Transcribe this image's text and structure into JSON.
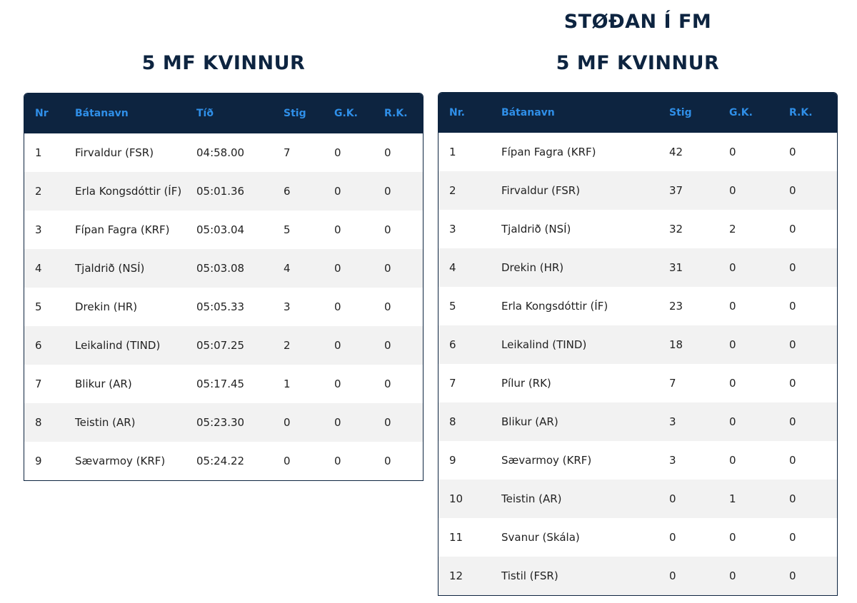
{
  "left": {
    "title": "5 MF KVINNUR",
    "columns": [
      "Nr",
      "Bátanavn",
      "Tíð",
      "Stig",
      "G.K.",
      "R.K."
    ],
    "rows": [
      [
        "1",
        "Firvaldur (FSR)",
        "04:58.00",
        "7",
        "0",
        "0"
      ],
      [
        "2",
        "Erla Kongsdóttir (ÍF)",
        "05:01.36",
        "6",
        "0",
        "0"
      ],
      [
        "3",
        "Fípan Fagra (KRF)",
        "05:03.04",
        "5",
        "0",
        "0"
      ],
      [
        "4",
        "Tjaldrið (NSÍ)",
        "05:03.08",
        "4",
        "0",
        "0"
      ],
      [
        "5",
        "Drekin (HR)",
        "05:05.33",
        "3",
        "0",
        "0"
      ],
      [
        "6",
        "Leikalind (TIND)",
        "05:07.25",
        "2",
        "0",
        "0"
      ],
      [
        "7",
        "Blikur (AR)",
        "05:17.45",
        "1",
        "0",
        "0"
      ],
      [
        "8",
        "Teistin (AR)",
        "05:23.30",
        "0",
        "0",
        "0"
      ],
      [
        "9",
        "Sævarmoy (KRF)",
        "05:24.22",
        "0",
        "0",
        "0"
      ]
    ]
  },
  "right": {
    "title_top": "STØÐAN Í FM",
    "title": "5 MF KVINNUR",
    "columns": [
      "Nr.",
      "Bátanavn",
      "Stig",
      "G.K.",
      "R.K."
    ],
    "rows": [
      [
        "1",
        "Fípan Fagra (KRF)",
        "42",
        "0",
        "0"
      ],
      [
        "2",
        "Firvaldur (FSR)",
        "37",
        "0",
        "0"
      ],
      [
        "3",
        "Tjaldrið (NSÍ)",
        "32",
        "2",
        "0"
      ],
      [
        "4",
        "Drekin (HR)",
        "31",
        "0",
        "0"
      ],
      [
        "5",
        "Erla Kongsdóttir (ÍF)",
        "23",
        "0",
        "0"
      ],
      [
        "6",
        "Leikalind (TIND)",
        "18",
        "0",
        "0"
      ],
      [
        "7",
        "Pílur (RK)",
        "7",
        "0",
        "0"
      ],
      [
        "8",
        "Blikur (AR)",
        "3",
        "0",
        "0"
      ],
      [
        "9",
        "Sævarmoy (KRF)",
        "3",
        "0",
        "0"
      ],
      [
        "10",
        "Teistin (AR)",
        "0",
        "1",
        "0"
      ],
      [
        "11",
        "Svanur (Skála)",
        "0",
        "0",
        "0"
      ],
      [
        "12",
        "Tistil (FSR)",
        "0",
        "0",
        "0"
      ]
    ]
  }
}
